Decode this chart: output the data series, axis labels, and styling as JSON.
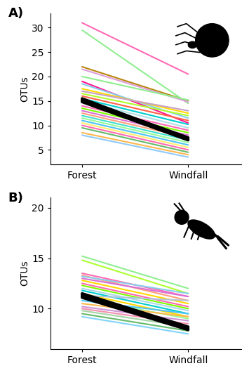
{
  "panel_A": {
    "label": "A)",
    "ylabel": "OTUs",
    "xtick_labels": [
      "Forest",
      "Windfall"
    ],
    "ylim": [
      2,
      33
    ],
    "yticks": [
      5,
      10,
      15,
      20,
      25,
      30
    ],
    "lines": [
      {
        "forest": 15.5,
        "windfall": 7.3,
        "color": "#000000",
        "lw": 2.8
      },
      {
        "forest": 15.3,
        "windfall": 7.5,
        "color": "#000000",
        "lw": 2.8
      },
      {
        "forest": 15.1,
        "windfall": 7.2,
        "color": "#000000",
        "lw": 2.8
      },
      {
        "forest": 15.0,
        "windfall": 7.0,
        "color": "#000000",
        "lw": 2.8
      },
      {
        "forest": 14.8,
        "windfall": 7.0,
        "color": "#000000",
        "lw": 2.8
      },
      {
        "forest": 31.0,
        "windfall": 20.5,
        "color": "#ff69b4",
        "lw": 1.5
      },
      {
        "forest": 29.5,
        "windfall": 14.5,
        "color": "#90ee90",
        "lw": 1.5
      },
      {
        "forest": 22.0,
        "windfall": 15.0,
        "color": "#b8860b",
        "lw": 1.5
      },
      {
        "forest": 21.5,
        "windfall": 14.8,
        "color": "#dda0dd",
        "lw": 1.5
      },
      {
        "forest": 20.0,
        "windfall": 15.2,
        "color": "#90ee90",
        "lw": 1.5
      },
      {
        "forest": 19.0,
        "windfall": 10.5,
        "color": "#ff1493",
        "lw": 1.5
      },
      {
        "forest": 18.5,
        "windfall": 11.5,
        "color": "#87ceeb",
        "lw": 1.5
      },
      {
        "forest": 17.5,
        "windfall": 12.5,
        "color": "#ffd700",
        "lw": 1.5
      },
      {
        "forest": 17.0,
        "windfall": 13.0,
        "color": "#c8a2c8",
        "lw": 1.5
      },
      {
        "forest": 16.5,
        "windfall": 12.0,
        "color": "#adff2f",
        "lw": 1.5
      },
      {
        "forest": 16.0,
        "windfall": 11.0,
        "color": "#ff6347",
        "lw": 1.5
      },
      {
        "forest": 15.5,
        "windfall": 10.2,
        "color": "#00ced1",
        "lw": 1.5
      },
      {
        "forest": 15.0,
        "windfall": 9.5,
        "color": "#b0e0e6",
        "lw": 1.5
      },
      {
        "forest": 14.0,
        "windfall": 9.0,
        "color": "#ff69b4",
        "lw": 1.5
      },
      {
        "forest": 13.5,
        "windfall": 8.5,
        "color": "#7cfc00",
        "lw": 1.5
      },
      {
        "forest": 13.0,
        "windfall": 8.0,
        "color": "#da70d6",
        "lw": 1.5
      },
      {
        "forest": 12.5,
        "windfall": 7.5,
        "color": "#ffa07a",
        "lw": 1.5
      },
      {
        "forest": 12.0,
        "windfall": 7.0,
        "color": "#40e0d0",
        "lw": 1.5
      },
      {
        "forest": 11.5,
        "windfall": 6.5,
        "color": "#98fb98",
        "lw": 1.5
      },
      {
        "forest": 11.0,
        "windfall": 6.0,
        "color": "#4fc3f7",
        "lw": 1.5
      },
      {
        "forest": 10.5,
        "windfall": 5.5,
        "color": "#ffec6e",
        "lw": 1.5
      },
      {
        "forest": 10.0,
        "windfall": 5.0,
        "color": "#ff69b4",
        "lw": 1.5
      },
      {
        "forest": 9.5,
        "windfall": 4.5,
        "color": "#66bb6a",
        "lw": 1.5
      },
      {
        "forest": 8.5,
        "windfall": 4.0,
        "color": "#ffb74d",
        "lw": 1.5
      },
      {
        "forest": 8.0,
        "windfall": 3.5,
        "color": "#90caf9",
        "lw": 1.5
      }
    ]
  },
  "panel_B": {
    "label": "B)",
    "ylabel": "OTUs",
    "xtick_labels": [
      "Forest",
      "Windfall"
    ],
    "ylim": [
      6,
      21
    ],
    "yticks": [
      10,
      15,
      20
    ],
    "lines": [
      {
        "forest": 11.5,
        "windfall": 8.2,
        "color": "#000000",
        "lw": 2.8
      },
      {
        "forest": 11.4,
        "windfall": 8.1,
        "color": "#000000",
        "lw": 2.8
      },
      {
        "forest": 11.3,
        "windfall": 8.0,
        "color": "#000000",
        "lw": 2.8
      },
      {
        "forest": 11.2,
        "windfall": 8.0,
        "color": "#000000",
        "lw": 2.8
      },
      {
        "forest": 11.1,
        "windfall": 7.9,
        "color": "#000000",
        "lw": 2.8
      },
      {
        "forest": 15.2,
        "windfall": 12.0,
        "color": "#90ee90",
        "lw": 1.5
      },
      {
        "forest": 14.8,
        "windfall": 11.5,
        "color": "#adff2f",
        "lw": 1.5
      },
      {
        "forest": 13.5,
        "windfall": 11.2,
        "color": "#ff69b4",
        "lw": 1.5
      },
      {
        "forest": 13.3,
        "windfall": 10.8,
        "color": "#ffa07a",
        "lw": 1.5
      },
      {
        "forest": 13.2,
        "windfall": 11.5,
        "color": "#87ceeb",
        "lw": 1.5
      },
      {
        "forest": 13.0,
        "windfall": 11.2,
        "color": "#da70d6",
        "lw": 1.5
      },
      {
        "forest": 12.8,
        "windfall": 10.5,
        "color": "#ffd700",
        "lw": 1.5
      },
      {
        "forest": 12.5,
        "windfall": 10.2,
        "color": "#ff69b4",
        "lw": 1.5
      },
      {
        "forest": 12.3,
        "windfall": 10.0,
        "color": "#7cfc00",
        "lw": 1.5
      },
      {
        "forest": 12.0,
        "windfall": 9.8,
        "color": "#add8e6",
        "lw": 1.5
      },
      {
        "forest": 11.8,
        "windfall": 9.5,
        "color": "#00ced1",
        "lw": 1.5
      },
      {
        "forest": 11.5,
        "windfall": 9.2,
        "color": "#ffd700",
        "lw": 1.5
      },
      {
        "forest": 11.3,
        "windfall": 10.8,
        "color": "#b0c4de",
        "lw": 1.5
      },
      {
        "forest": 11.0,
        "windfall": 9.0,
        "color": "#98fb98",
        "lw": 1.5
      },
      {
        "forest": 10.8,
        "windfall": 9.5,
        "color": "#4fc3f7",
        "lw": 1.5
      },
      {
        "forest": 10.5,
        "windfall": 9.2,
        "color": "#ffb74d",
        "lw": 1.5
      },
      {
        "forest": 10.2,
        "windfall": 8.8,
        "color": "#ce93d8",
        "lw": 1.5
      },
      {
        "forest": 10.0,
        "windfall": 8.5,
        "color": "#f48fb1",
        "lw": 1.5
      },
      {
        "forest": 9.8,
        "windfall": 8.2,
        "color": "#a5d6a7",
        "lw": 1.5
      },
      {
        "forest": 9.5,
        "windfall": 7.8,
        "color": "#66bb6a",
        "lw": 1.5
      },
      {
        "forest": 9.2,
        "windfall": 7.5,
        "color": "#81d4fa",
        "lw": 1.5
      }
    ]
  },
  "bg_color": "#ffffff",
  "spine_color": "#000000",
  "font_size": 10,
  "label_font_size": 13,
  "tick_labelsize": 10
}
